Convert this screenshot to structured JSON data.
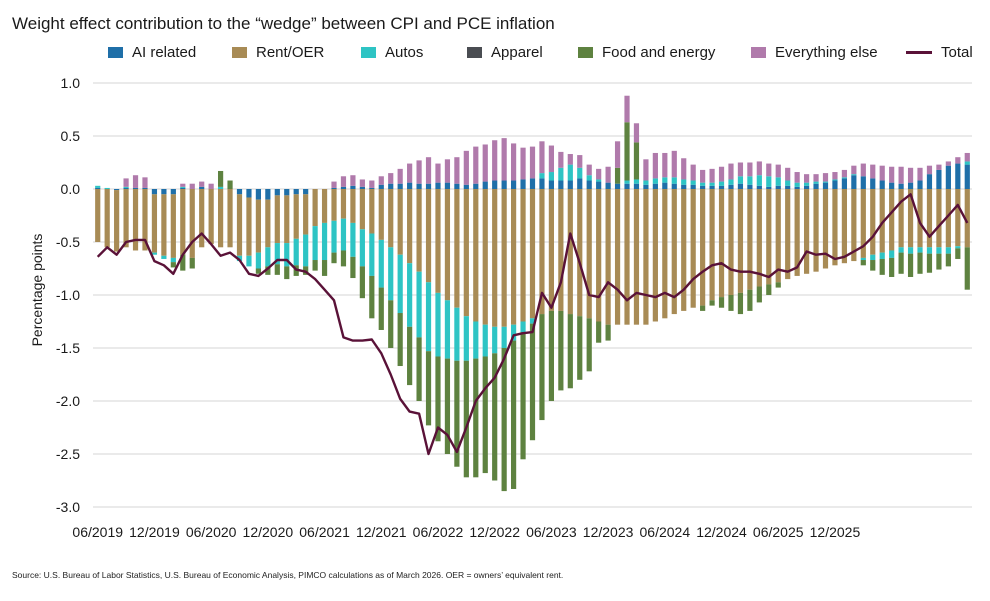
{
  "title": "Weight effect contribution to the “wedge” between CPI and PCE inflation",
  "source": "Source: U.S. Bureau of Labor Statistics, U.S. Bureau of Economic Analysis, PIMCO calculations as of March 2026. OER = owners’ equivalent rent.",
  "colors": {
    "ai": "#1f6fa8",
    "rent": "#a88b55",
    "autos": "#2ec4c4",
    "apparel": "#4a4d52",
    "food": "#5e8240",
    "else": "#b07aab",
    "total": "#5a1238",
    "grid": "#d4d4d4"
  },
  "chart_data": {
    "type": "bar",
    "stacked": true,
    "ylabel": "Percentage points",
    "ylim": [
      -3.0,
      1.0
    ],
    "yticks": [
      "1.0",
      "0.5",
      "0.0",
      "-0.5",
      "-1.0",
      "-1.5",
      "-2.0",
      "-2.5",
      "-3.0"
    ],
    "grid": true,
    "legend_position": "top",
    "x_start": "06/2019",
    "x_end": "02/2026",
    "xtick_labels": [
      "06/2019",
      "12/2019",
      "06/2020",
      "12/2020",
      "06/2021",
      "12/2021",
      "06/2022",
      "12/2022",
      "06/2023",
      "12/2023",
      "06/2024",
      "12/2024",
      "06/2025",
      "12/2025"
    ],
    "series": [
      {
        "name": "AI related",
        "key": "ai",
        "values": [
          0.01,
          0.0,
          -0.01,
          0.01,
          0.01,
          0.01,
          -0.05,
          -0.05,
          -0.05,
          0.01,
          0.0,
          0.02,
          0.0,
          0.0,
          0.0,
          -0.05,
          -0.08,
          -0.1,
          -0.1,
          -0.06,
          -0.06,
          -0.05,
          -0.05,
          0.0,
          0.0,
          0.01,
          0.02,
          0.03,
          0.02,
          0.01,
          0.04,
          0.05,
          0.05,
          0.06,
          0.05,
          0.05,
          0.06,
          0.06,
          0.05,
          0.04,
          0.05,
          0.07,
          0.08,
          0.08,
          0.08,
          0.09,
          0.1,
          0.1,
          0.08,
          0.08,
          0.08,
          0.1,
          0.08,
          0.07,
          0.06,
          0.05,
          0.05,
          0.05,
          0.04,
          0.05,
          0.06,
          0.05,
          0.04,
          0.04,
          0.03,
          0.03,
          0.03,
          0.04,
          0.05,
          0.04,
          0.03,
          0.02,
          0.03,
          0.03,
          0.02,
          0.03,
          0.05,
          0.06,
          0.08,
          0.1,
          0.13,
          0.12,
          0.1,
          0.08,
          0.06,
          0.05,
          0.06,
          0.08,
          0.14,
          0.18,
          0.22,
          0.24,
          0.23
        ]
      },
      {
        "name": "Rent/OER",
        "key": "rent",
        "values": [
          -0.5,
          -0.55,
          -0.58,
          -0.55,
          -0.58,
          -0.58,
          -0.55,
          -0.58,
          -0.6,
          -0.62,
          -0.65,
          -0.55,
          -0.52,
          -0.55,
          -0.55,
          -0.58,
          -0.55,
          -0.5,
          -0.45,
          -0.45,
          -0.45,
          -0.42,
          -0.38,
          -0.35,
          -0.32,
          -0.3,
          -0.28,
          -0.32,
          -0.38,
          -0.42,
          -0.48,
          -0.55,
          -0.62,
          -0.7,
          -0.78,
          -0.88,
          -0.98,
          -1.05,
          -1.12,
          -1.2,
          -1.25,
          -1.28,
          -1.3,
          -1.3,
          -1.28,
          -1.25,
          -1.22,
          -1.18,
          -1.15,
          -1.15,
          -1.18,
          -1.2,
          -1.22,
          -1.25,
          -1.28,
          -1.28,
          -1.28,
          -1.28,
          -1.28,
          -1.25,
          -1.22,
          -1.18,
          -1.15,
          -1.12,
          -1.1,
          -1.05,
          -1.02,
          -1.0,
          -0.98,
          -0.95,
          -0.92,
          -0.9,
          -0.88,
          -0.85,
          -0.82,
          -0.8,
          -0.78,
          -0.75,
          -0.72,
          -0.7,
          -0.68,
          -0.65,
          -0.62,
          -0.6,
          -0.58,
          -0.55,
          -0.55,
          -0.55,
          -0.55,
          -0.55,
          -0.55,
          -0.54,
          -0.55
        ]
      },
      {
        "name": "Autos",
        "key": "autos",
        "values": [
          0.02,
          0.01,
          0.0,
          0.01,
          0.0,
          0.0,
          -0.02,
          -0.03,
          -0.04,
          0.01,
          0.0,
          0.0,
          0.0,
          0.02,
          0.0,
          -0.05,
          -0.1,
          -0.15,
          -0.18,
          -0.2,
          -0.22,
          -0.25,
          -0.3,
          -0.32,
          -0.35,
          -0.3,
          -0.3,
          -0.32,
          -0.35,
          -0.4,
          -0.45,
          -0.5,
          -0.55,
          -0.6,
          -0.62,
          -0.65,
          -0.6,
          -0.55,
          -0.5,
          -0.42,
          -0.35,
          -0.3,
          -0.25,
          -0.2,
          -0.15,
          -0.1,
          -0.05,
          0.05,
          0.08,
          0.12,
          0.15,
          0.1,
          0.05,
          0.02,
          0.0,
          0.0,
          0.03,
          0.04,
          0.04,
          0.05,
          0.05,
          0.06,
          0.05,
          0.04,
          0.03,
          0.03,
          0.04,
          0.05,
          0.07,
          0.08,
          0.1,
          0.1,
          0.08,
          0.05,
          0.04,
          0.03,
          0.02,
          0.01,
          0.01,
          0.01,
          0.01,
          -0.02,
          -0.05,
          -0.06,
          -0.07,
          -0.05,
          -0.06,
          -0.05,
          -0.06,
          -0.06,
          -0.06,
          -0.02,
          0.03
        ]
      },
      {
        "name": "Apparel",
        "key": "apparel",
        "values": [
          0.0,
          0.0,
          0.0,
          0.0,
          0.0,
          0.0,
          0.0,
          0.0,
          0.0,
          0.0,
          0.0,
          0.0,
          0.0,
          0.0,
          0.0,
          0.0,
          0.0,
          0.0,
          0.0,
          0.0,
          0.0,
          0.0,
          0.0,
          0.0,
          0.0,
          0.0,
          0.0,
          0.0,
          0.0,
          0.0,
          0.0,
          0.0,
          0.0,
          0.0,
          0.0,
          0.0,
          0.0,
          0.0,
          0.0,
          0.0,
          0.0,
          0.0,
          0.0,
          0.0,
          0.0,
          0.0,
          0.0,
          0.0,
          0.0,
          0.0,
          0.0,
          0.0,
          0.0,
          0.0,
          0.0,
          0.0,
          0.0,
          0.0,
          0.0,
          0.0,
          0.0,
          0.0,
          0.0,
          0.0,
          0.0,
          0.0,
          0.0,
          0.0,
          0.0,
          0.0,
          0.0,
          0.0,
          0.0,
          0.0,
          0.0,
          0.0,
          0.0,
          0.0,
          0.0,
          0.0,
          0.0,
          0.0,
          0.0,
          0.0,
          0.0,
          0.0,
          0.0,
          0.0,
          0.0,
          0.0,
          0.0,
          0.0,
          0.0
        ]
      },
      {
        "name": "Food and energy",
        "key": "food",
        "values": [
          0.0,
          0.0,
          0.0,
          0.0,
          0.0,
          0.0,
          0.0,
          0.0,
          -0.05,
          -0.15,
          -0.1,
          0.0,
          0.0,
          0.15,
          0.08,
          0.0,
          0.0,
          -0.05,
          -0.08,
          -0.1,
          -0.12,
          -0.1,
          -0.08,
          -0.1,
          -0.15,
          -0.1,
          -0.15,
          -0.2,
          -0.3,
          -0.4,
          -0.4,
          -0.45,
          -0.5,
          -0.55,
          -0.6,
          -0.7,
          -0.8,
          -0.9,
          -1.0,
          -1.1,
          -1.12,
          -1.1,
          -1.2,
          -1.35,
          -1.4,
          -1.2,
          -1.1,
          -1.0,
          -0.85,
          -0.75,
          -0.7,
          -0.6,
          -0.5,
          -0.2,
          -0.15,
          0.15,
          0.55,
          0.35,
          0.0,
          0.0,
          0.0,
          0.0,
          0.0,
          0.0,
          -0.05,
          -0.05,
          -0.1,
          -0.15,
          -0.2,
          -0.2,
          -0.15,
          -0.1,
          -0.05,
          0.0,
          0.0,
          0.0,
          0.0,
          0.0,
          0.0,
          0.0,
          0.0,
          -0.05,
          -0.1,
          -0.15,
          -0.18,
          -0.2,
          -0.22,
          -0.2,
          -0.18,
          -0.15,
          -0.12,
          -0.1,
          -0.4
        ]
      },
      {
        "name": "Everything else",
        "key": "else",
        "values": [
          0.0,
          0.0,
          0.0,
          0.08,
          0.12,
          0.1,
          0.0,
          0.0,
          0.0,
          0.03,
          0.05,
          0.05,
          0.05,
          0.0,
          0.0,
          0.0,
          0.0,
          0.0,
          0.0,
          0.0,
          0.0,
          0.0,
          0.0,
          0.0,
          0.0,
          0.06,
          0.1,
          0.1,
          0.07,
          0.07,
          0.08,
          0.1,
          0.14,
          0.18,
          0.22,
          0.25,
          0.18,
          0.22,
          0.25,
          0.32,
          0.35,
          0.35,
          0.38,
          0.4,
          0.35,
          0.3,
          0.3,
          0.3,
          0.25,
          0.15,
          0.1,
          0.12,
          0.1,
          0.1,
          0.15,
          0.25,
          0.25,
          0.18,
          0.2,
          0.24,
          0.23,
          0.25,
          0.2,
          0.15,
          0.12,
          0.13,
          0.14,
          0.15,
          0.13,
          0.13,
          0.13,
          0.12,
          0.12,
          0.12,
          0.1,
          0.08,
          0.07,
          0.08,
          0.07,
          0.07,
          0.08,
          0.12,
          0.13,
          0.14,
          0.15,
          0.16,
          0.14,
          0.12,
          0.08,
          0.05,
          0.04,
          0.06,
          0.08
        ]
      },
      {
        "name": "Total",
        "key": "total",
        "line": true,
        "values": [
          -0.64,
          -0.55,
          -0.62,
          -0.5,
          -0.48,
          -0.48,
          -0.68,
          -0.72,
          -0.8,
          -0.62,
          -0.5,
          -0.42,
          -0.52,
          -0.63,
          -0.6,
          -0.67,
          -0.8,
          -0.82,
          -0.75,
          -0.67,
          -0.67,
          -0.76,
          -0.78,
          -0.85,
          -0.95,
          -1.05,
          -1.4,
          -1.43,
          -1.43,
          -1.42,
          -1.55,
          -1.75,
          -1.98,
          -2.1,
          -2.12,
          -2.5,
          -2.25,
          -2.32,
          -2.48,
          -2.25,
          -2.0,
          -1.88,
          -1.78,
          -1.6,
          -1.38,
          -1.36,
          -1.35,
          -0.98,
          -1.12,
          -0.88,
          -0.42,
          -0.7,
          -1.0,
          -1.02,
          -0.88,
          -0.95,
          -1.05,
          -0.98,
          -1.0,
          -1.02,
          -0.98,
          -1.02,
          -0.95,
          -0.85,
          -0.78,
          -0.72,
          -0.7,
          -0.76,
          -0.78,
          -0.78,
          -0.8,
          -0.83,
          -0.76,
          -0.78,
          -0.74,
          -0.59,
          -0.62,
          -0.61,
          -0.66,
          -0.64,
          -0.59,
          -0.54,
          -0.45,
          -0.32,
          -0.22,
          -0.12,
          -0.05,
          -0.32,
          -0.45,
          -0.35,
          -0.25,
          -0.15,
          -0.32
        ]
      }
    ]
  }
}
